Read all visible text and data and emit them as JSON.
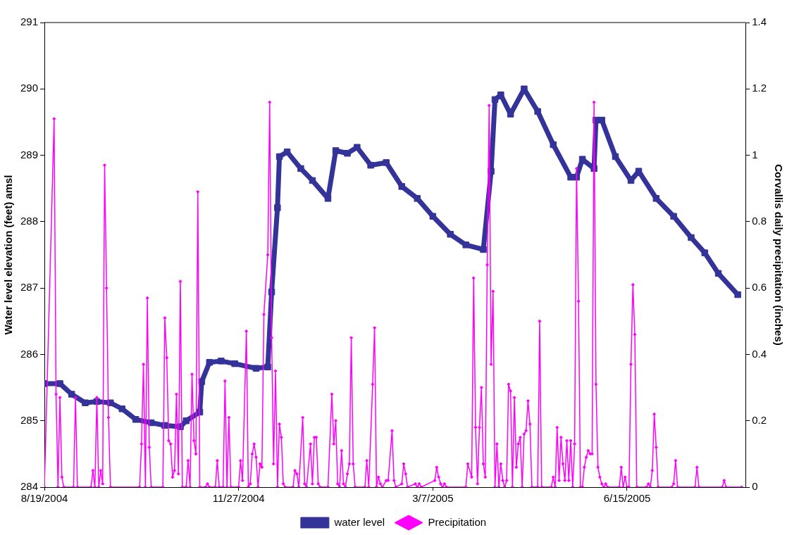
{
  "chart_data": {
    "type": "line",
    "ylabel": "Water level elevation (feet) amsl",
    "y2label": "Corvallis daily precipitation (inches)",
    "xlim": [
      "2004-08-19",
      "2005-08-15"
    ],
    "xticks": [
      {
        "value": "2004-08-19",
        "label": "8/19/2004"
      },
      {
        "value": "2004-11-27",
        "label": "11/27/2004"
      },
      {
        "value": "2005-03-07",
        "label": "3/7/2005"
      },
      {
        "value": "2005-06-15",
        "label": "6/15/2005"
      }
    ],
    "ylim": [
      284,
      291
    ],
    "yticks": [
      284,
      285,
      286,
      287,
      288,
      289,
      290,
      291
    ],
    "y2lim": [
      0,
      1.4
    ],
    "y2ticks": [
      0,
      0.2,
      0.4,
      0.6,
      0.8,
      1,
      1.2,
      1.4
    ],
    "grid": false,
    "legend": "bottom",
    "line_style": "solid",
    "series": [
      {
        "name": "water level",
        "color": "#333399",
        "marker": "square",
        "x": [
          "2004-08-19",
          "2004-08-27",
          "2004-09-02",
          "2004-09-09",
          "2004-09-15",
          "2004-09-22",
          "2004-09-28",
          "2004-10-05",
          "2004-10-13",
          "2004-10-20",
          "2004-10-28",
          "2004-10-31",
          "2004-11-07",
          "2004-11-08",
          "2004-11-12",
          "2004-11-18",
          "2004-11-25",
          "2004-12-06",
          "2004-12-12",
          "2004-12-14",
          "2004-12-17",
          "2004-12-18",
          "2004-12-22",
          "2004-12-29",
          "2005-01-04",
          "2005-01-12",
          "2005-01-16",
          "2005-01-22",
          "2005-01-27",
          "2005-02-03",
          "2005-02-11",
          "2005-02-19",
          "2005-02-27",
          "2005-03-07",
          "2005-03-16",
          "2005-03-24",
          "2005-04-02",
          "2005-04-06",
          "2005-04-08",
          "2005-04-11",
          "2005-04-16",
          "2005-04-23",
          "2005-04-30",
          "2005-05-08",
          "2005-05-17",
          "2005-05-20",
          "2005-05-23",
          "2005-05-29",
          "2005-05-30",
          "2005-06-02",
          "2005-06-09",
          "2005-06-17",
          "2005-06-21",
          "2005-06-30",
          "2005-07-09",
          "2005-07-18",
          "2005-07-25",
          "2005-08-01",
          "2005-08-11"
        ],
        "values": [
          285.56,
          285.56,
          285.4,
          285.27,
          285.29,
          285.27,
          285.18,
          285.02,
          284.97,
          284.93,
          284.91,
          285.0,
          285.13,
          285.59,
          285.88,
          285.9,
          285.86,
          285.79,
          285.81,
          286.94,
          288.21,
          288.98,
          289.05,
          288.8,
          288.62,
          288.35,
          289.07,
          289.03,
          289.12,
          288.85,
          288.89,
          288.53,
          288.35,
          288.08,
          287.81,
          287.65,
          287.58,
          288.76,
          289.84,
          289.91,
          289.62,
          290.0,
          289.66,
          289.16,
          288.67,
          288.67,
          288.94,
          288.8,
          289.53,
          289.53,
          288.98,
          288.62,
          288.76,
          288.35,
          288.08,
          287.76,
          287.53,
          287.22,
          286.9
        ]
      },
      {
        "name": "Precipitation",
        "color": "#ff00ff",
        "marker": "diamond",
        "axis": "y2",
        "x": [
          "2004-08-19",
          "2004-08-24",
          "2004-08-25",
          "2004-08-26",
          "2004-08-27",
          "2004-08-28",
          "2004-08-29",
          "2004-09-03",
          "2004-09-04",
          "2004-09-05",
          "2004-09-12",
          "2004-09-13",
          "2004-09-14",
          "2004-09-15",
          "2004-09-16",
          "2004-09-17",
          "2004-09-18",
          "2004-09-19",
          "2004-09-20",
          "2004-09-21",
          "2004-09-22",
          "2004-10-07",
          "2004-10-08",
          "2004-10-09",
          "2004-10-10",
          "2004-10-11",
          "2004-10-12",
          "2004-10-13",
          "2004-10-19",
          "2004-10-20",
          "2004-10-21",
          "2004-10-22",
          "2004-10-23",
          "2004-10-24",
          "2004-10-25",
          "2004-10-26",
          "2004-10-27",
          "2004-10-28",
          "2004-10-29",
          "2004-10-31",
          "2004-11-01",
          "2004-11-02",
          "2004-11-03",
          "2004-11-04",
          "2004-11-05",
          "2004-11-06",
          "2004-11-07",
          "2004-11-10",
          "2004-11-11",
          "2004-11-12",
          "2004-11-15",
          "2004-11-16",
          "2004-11-17",
          "2004-11-19",
          "2004-11-20",
          "2004-11-21",
          "2004-11-22",
          "2004-11-23",
          "2004-11-27",
          "2004-11-28",
          "2004-11-29",
          "2004-12-01",
          "2004-12-02",
          "2004-12-03",
          "2004-12-04",
          "2004-12-05",
          "2004-12-06",
          "2004-12-07",
          "2004-12-08",
          "2004-12-09",
          "2004-12-10",
          "2004-12-12",
          "2004-12-13",
          "2004-12-14",
          "2004-12-15",
          "2004-12-16",
          "2004-12-17",
          "2004-12-18",
          "2004-12-19",
          "2004-12-20",
          "2004-12-21",
          "2004-12-25",
          "2004-12-26",
          "2004-12-27",
          "2004-12-28",
          "2004-12-30",
          "2004-12-31",
          "2005-01-01",
          "2005-01-03",
          "2005-01-04",
          "2005-01-05",
          "2005-01-06",
          "2005-01-07",
          "2005-01-08",
          "2005-01-12",
          "2005-01-14",
          "2005-01-15",
          "2005-01-16",
          "2005-01-17",
          "2005-01-18",
          "2005-01-19",
          "2005-01-20",
          "2005-01-21",
          "2005-01-22",
          "2005-01-23",
          "2005-01-24",
          "2005-01-25",
          "2005-01-26",
          "2005-01-31",
          "2005-02-01",
          "2005-02-02",
          "2005-02-04",
          "2005-02-05",
          "2005-02-06",
          "2005-02-07",
          "2005-02-08",
          "2005-02-09",
          "2005-02-11",
          "2005-02-12",
          "2005-02-14",
          "2005-02-15",
          "2005-02-16",
          "2005-02-19",
          "2005-02-20",
          "2005-02-21",
          "2005-02-22",
          "2005-02-26",
          "2005-02-27",
          "2005-02-28",
          "2005-03-01",
          "2005-03-08",
          "2005-03-09",
          "2005-03-10",
          "2005-03-11",
          "2005-03-12",
          "2005-03-13",
          "2005-03-14",
          "2005-03-24",
          "2005-03-25",
          "2005-03-27",
          "2005-03-28",
          "2005-03-29",
          "2005-03-30",
          "2005-03-31",
          "2005-04-01",
          "2005-04-02",
          "2005-04-03",
          "2005-04-04",
          "2005-04-05",
          "2005-04-06",
          "2005-04-07",
          "2005-04-08",
          "2005-04-09",
          "2005-04-10",
          "2005-04-11",
          "2005-04-12",
          "2005-04-13",
          "2005-04-14",
          "2005-04-15",
          "2005-04-16",
          "2005-04-17",
          "2005-04-18",
          "2005-04-19",
          "2005-04-20",
          "2005-04-21",
          "2005-04-22",
          "2005-04-23",
          "2005-04-24",
          "2005-04-25",
          "2005-04-26",
          "2005-04-27",
          "2005-04-30",
          "2005-05-01",
          "2005-05-02",
          "2005-05-07",
          "2005-05-08",
          "2005-05-09",
          "2005-05-10",
          "2005-05-11",
          "2005-05-12",
          "2005-05-13",
          "2005-05-14",
          "2005-05-15",
          "2005-05-16",
          "2005-05-17",
          "2005-05-18",
          "2005-05-19",
          "2005-05-20",
          "2005-05-21",
          "2005-05-22",
          "2005-05-23",
          "2005-05-24",
          "2005-05-25",
          "2005-05-26",
          "2005-05-27",
          "2005-05-28",
          "2005-05-29",
          "2005-05-30",
          "2005-05-31",
          "2005-06-01",
          "2005-06-02",
          "2005-06-03",
          "2005-06-04",
          "2005-06-05",
          "2005-06-11",
          "2005-06-12",
          "2005-06-13",
          "2005-06-14",
          "2005-06-15",
          "2005-06-16",
          "2005-06-17",
          "2005-06-18",
          "2005-06-19",
          "2005-06-20",
          "2005-06-25",
          "2005-06-26",
          "2005-06-27",
          "2005-06-28",
          "2005-06-29",
          "2005-06-30",
          "2005-07-01",
          "2005-07-08",
          "2005-07-09",
          "2005-07-10",
          "2005-07-11",
          "2005-07-20",
          "2005-07-21",
          "2005-07-22",
          "2005-08-03",
          "2005-08-04",
          "2005-08-05",
          "2005-08-13"
        ],
        "values": [
          0,
          1.11,
          0.28,
          0,
          0.27,
          0.03,
          0,
          0,
          0.27,
          0,
          0,
          0.05,
          0,
          0.27,
          0,
          0.05,
          0.01,
          0.97,
          0.6,
          0.21,
          0,
          0,
          0.13,
          0.37,
          0,
          0.57,
          0.12,
          0,
          0,
          0.51,
          0.39,
          0.14,
          0.13,
          0.03,
          0.05,
          0.28,
          0.04,
          0.62,
          0,
          0,
          0.08,
          0,
          0.34,
          0.14,
          0.1,
          0.89,
          0,
          0,
          0.01,
          0,
          0,
          0.08,
          0,
          0,
          0.32,
          0,
          0.21,
          0,
          0,
          0.08,
          0.02,
          0.47,
          0,
          0.01,
          0.1,
          0.13,
          0.09,
          0,
          0.07,
          0.06,
          0.52,
          0.7,
          1.16,
          0.45,
          0.07,
          0.35,
          0,
          0.19,
          0.15,
          0.01,
          0,
          0,
          0.05,
          0.04,
          0,
          0.21,
          0.01,
          0,
          0.13,
          0.01,
          0.15,
          0.15,
          0.01,
          0,
          0,
          0.28,
          0.13,
          0.2,
          0.01,
          0,
          0.11,
          0.01,
          0,
          0.04,
          0.07,
          0.45,
          0.07,
          0,
          0,
          0.08,
          0,
          0.31,
          0.48,
          0,
          0.03,
          0.01,
          0,
          0.02,
          0.02,
          0.17,
          0.02,
          0,
          0.01,
          0.07,
          0.04,
          0,
          0.01,
          0,
          0.01,
          0,
          0.02,
          0.06,
          0.03,
          0.01,
          0,
          0.01,
          0,
          0,
          0.07,
          0.03,
          0.63,
          0.18,
          0.01,
          0.18,
          0.3,
          0.07,
          0.03,
          0.67,
          1.15,
          0.37,
          0.59,
          0,
          0.13,
          0,
          0.07,
          0.02,
          0,
          0.02,
          0.31,
          0.29,
          0,
          0.27,
          0.06,
          0.13,
          0.15,
          0,
          0.16,
          0.17,
          0.26,
          0.19,
          0,
          0,
          0.5,
          0,
          0,
          0.03,
          0,
          0.18,
          0.02,
          0.15,
          0.07,
          0.02,
          0.14,
          0.02,
          0.14,
          0,
          0.13,
          0.96,
          0.56,
          0,
          0,
          0.06,
          0.09,
          0.11,
          0.1,
          0.1,
          1.16,
          0.31,
          0.06,
          0.03,
          0.01,
          0,
          0.01,
          0,
          0,
          0.06,
          0,
          0.03,
          0,
          0,
          0.37,
          0.61,
          0.46,
          0,
          0,
          0.01,
          0,
          0.05,
          0.22,
          0.12,
          0,
          0,
          0.01,
          0.08,
          0,
          0,
          0.06,
          0,
          0,
          0.02,
          0,
          0
        ]
      }
    ]
  }
}
